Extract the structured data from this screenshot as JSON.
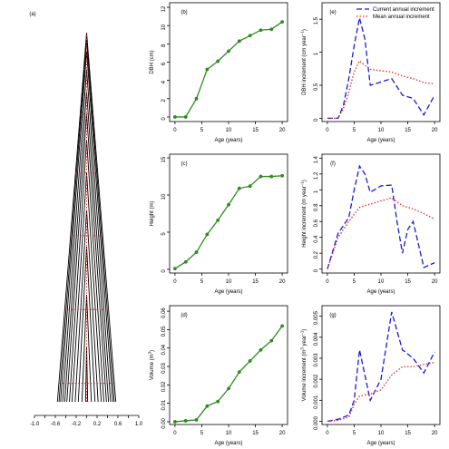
{
  "chart_data": [
    {
      "id": "a",
      "panel_label": "(a)",
      "type": "line",
      "title": "",
      "xlabel": "",
      "ylabel": "",
      "xlim": [
        -1.0,
        1.0
      ],
      "xticks": [
        -1.0,
        -0.6,
        -0.2,
        0.2,
        0.6,
        1.0
      ],
      "xtick_labels": [
        "-1.0",
        "-0.6",
        "-0.2",
        "0.2",
        "0.6",
        "1.0"
      ],
      "series": [
        {
          "values": [
            [
              -0.02,
              0.0
            ],
            [
              0.0,
              0.15
            ],
            [
              0.02,
              0.0
            ]
          ]
        },
        {
          "values": [
            [
              -0.09,
              0.0
            ],
            [
              0.0,
              0.29
            ],
            [
              0.09,
              0.0
            ]
          ]
        },
        {
          "values": [
            [
              -0.16,
              0.0
            ],
            [
              0.0,
              0.42
            ],
            [
              0.16,
              0.0
            ]
          ]
        },
        {
          "values": [
            [
              -0.22,
              0.0
            ],
            [
              0.0,
              0.52
            ],
            [
              0.22,
              0.0
            ]
          ]
        },
        {
          "values": [
            [
              -0.28,
              0.0
            ],
            [
              0.0,
              0.62
            ],
            [
              0.28,
              0.0
            ]
          ]
        },
        {
          "values": [
            [
              -0.33,
              0.0
            ],
            [
              0.0,
              0.71
            ],
            [
              0.33,
              0.0
            ]
          ]
        },
        {
          "values": [
            [
              -0.38,
              0.0
            ],
            [
              0.0,
              0.78
            ],
            [
              0.38,
              0.0
            ]
          ]
        },
        {
          "values": [
            [
              -0.42,
              0.0
            ],
            [
              0.0,
              0.84
            ],
            [
              0.42,
              0.0
            ]
          ]
        },
        {
          "values": [
            [
              -0.46,
              0.0
            ],
            [
              0.0,
              0.9
            ],
            [
              0.46,
              0.0
            ]
          ]
        },
        {
          "values": [
            [
              -0.5,
              0.0
            ],
            [
              0.0,
              0.95
            ],
            [
              0.5,
              0.0
            ]
          ]
        },
        {
          "values": [
            [
              -0.53,
              0.0
            ],
            [
              0.0,
              0.98
            ],
            [
              0.53,
              0.0
            ]
          ]
        },
        {
          "values": [
            [
              -0.56,
              0.0
            ],
            [
              0.0,
              1.0
            ],
            [
              0.56,
              0.0
            ]
          ]
        }
      ],
      "dotted_lines": {
        "color": "#e8281e",
        "vertical_x": 0.0,
        "horizontal_levels": [
          0.05,
          0.25,
          0.45,
          0.62,
          0.78,
          0.9
        ]
      },
      "colors": {
        "profile": "#000000",
        "axis": "#000000"
      }
    },
    {
      "id": "b",
      "panel_label": "(b)",
      "type": "line",
      "title": "",
      "xlabel": "Age (years)",
      "ylabel": "DBH (cm)",
      "ylabel_unit": "",
      "xlim": [
        -1,
        21
      ],
      "ylim": [
        -0.5,
        12.5
      ],
      "xticks": [
        0,
        5,
        10,
        15,
        20
      ],
      "yticks": [
        0,
        2,
        4,
        6,
        8,
        10,
        12
      ],
      "x": [
        0,
        2,
        4,
        6,
        8,
        10,
        12,
        14,
        16,
        18,
        20
      ],
      "series": [
        {
          "values": [
            0,
            0,
            2.0,
            5.2,
            6.1,
            7.2,
            8.3,
            8.9,
            9.5,
            9.6,
            10.4
          ],
          "color": "#2e8b1e",
          "style": "solid",
          "marker": "circle"
        }
      ]
    },
    {
      "id": "e",
      "panel_label": "(e)",
      "type": "line",
      "title": "",
      "xlabel": "Age (years)",
      "ylabel": "DBH increment (cm year",
      "ylabel_unit": "−1",
      "xlim": [
        -1,
        21
      ],
      "ylim": [
        -0.05,
        1.75
      ],
      "xticks": [
        0,
        5,
        10,
        15,
        20
      ],
      "yticks": [
        0.0,
        0.5,
        1.0,
        1.5
      ],
      "legend": {
        "placement": "top-right",
        "entries": [
          "Current annual increment",
          "Mean annual increment"
        ]
      },
      "series": [
        {
          "name": "Current annual increment",
          "color": "#1a1adc",
          "style": "dashed",
          "x": [
            0,
            2,
            3,
            4,
            5,
            6,
            7,
            8,
            10,
            12,
            14,
            16,
            18,
            20
          ],
          "values": [
            0.0,
            0.0,
            0.2,
            0.6,
            1.1,
            1.52,
            1.2,
            0.5,
            0.55,
            0.6,
            0.35,
            0.3,
            0.05,
            0.35
          ]
        },
        {
          "name": "Mean annual increment",
          "color": "#e8281e",
          "style": "dotted",
          "x": [
            0,
            2,
            3,
            4,
            5,
            6,
            7,
            8,
            10,
            12,
            14,
            16,
            18,
            20
          ],
          "values": [
            0.0,
            0.0,
            0.15,
            0.4,
            0.7,
            0.87,
            0.8,
            0.74,
            0.72,
            0.7,
            0.64,
            0.6,
            0.54,
            0.52
          ]
        }
      ]
    },
    {
      "id": "c",
      "panel_label": "(c)",
      "type": "line",
      "title": "",
      "xlabel": "Age (years)",
      "ylabel": "Height (m)",
      "ylabel_unit": "",
      "xlim": [
        -1,
        21
      ],
      "ylim": [
        -0.5,
        15.5
      ],
      "xticks": [
        0,
        5,
        10,
        15,
        20
      ],
      "yticks": [
        0,
        5,
        10,
        15
      ],
      "x": [
        0,
        2,
        4,
        6,
        8,
        10,
        12,
        14,
        16,
        18,
        20
      ],
      "series": [
        {
          "values": [
            0.1,
            1.0,
            2.3,
            4.7,
            6.6,
            8.7,
            10.9,
            11.2,
            12.5,
            12.5,
            12.6
          ],
          "color": "#2e8b1e",
          "style": "solid",
          "marker": "circle"
        }
      ]
    },
    {
      "id": "f",
      "panel_label": "(f)",
      "type": "line",
      "title": "",
      "xlabel": "Age (years)",
      "ylabel": "Height increment (m year",
      "ylabel_unit": "−1",
      "xlim": [
        -1,
        21
      ],
      "ylim": [
        -0.05,
        1.45
      ],
      "xticks": [
        0,
        5,
        10,
        15,
        20
      ],
      "yticks": [
        0.0,
        0.2,
        0.4,
        0.6,
        0.8,
        1.0,
        1.2,
        1.4
      ],
      "series": [
        {
          "name": "Current annual increment",
          "color": "#1a1adc",
          "style": "dashed",
          "x": [
            0,
            2,
            4,
            5,
            6,
            7,
            8,
            10,
            12,
            13,
            14,
            15,
            16,
            18,
            20
          ],
          "values": [
            0.0,
            0.45,
            0.65,
            1.0,
            1.3,
            1.2,
            0.97,
            1.05,
            1.06,
            0.6,
            0.2,
            0.5,
            0.6,
            0.02,
            0.08
          ]
        },
        {
          "name": "Mean annual increment",
          "color": "#e8281e",
          "style": "dotted",
          "x": [
            0,
            2,
            4,
            6,
            8,
            10,
            12,
            14,
            16,
            18,
            20
          ],
          "values": [
            0.0,
            0.4,
            0.6,
            0.78,
            0.82,
            0.86,
            0.9,
            0.8,
            0.76,
            0.7,
            0.63
          ]
        }
      ]
    },
    {
      "id": "d",
      "panel_label": "(d)",
      "type": "line",
      "title": "",
      "xlabel": "Age (years)",
      "ylabel": "Volume (m",
      "ylabel_unit": "3",
      "xlim": [
        -1,
        21
      ],
      "ylim": [
        -0.0015,
        0.063
      ],
      "xticks": [
        0,
        5,
        10,
        15,
        20
      ],
      "yticks": [
        0.0,
        0.01,
        0.02,
        0.03,
        0.04,
        0.05,
        0.06
      ],
      "ytick_labels": [
        "0.00",
        "0.01",
        "0.02",
        "0.03",
        "0.04",
        "0.05",
        "0.06"
      ],
      "x": [
        0,
        2,
        4,
        6,
        8,
        10,
        12,
        14,
        16,
        18,
        20
      ],
      "series": [
        {
          "values": [
            0.0,
            0.0005,
            0.001,
            0.0085,
            0.011,
            0.018,
            0.027,
            0.033,
            0.039,
            0.044,
            0.052
          ],
          "color": "#2e8b1e",
          "style": "solid",
          "marker": "circle"
        }
      ]
    },
    {
      "id": "g",
      "panel_label": "(g)",
      "type": "line",
      "title": "",
      "xlabel": "Age (years)",
      "ylabel": "Volume increment (m",
      "ylabel_unit": "3",
      "ylabel_suffix": " year",
      "ylabel_suffix_unit": "−1",
      "xlim": [
        -1,
        21
      ],
      "ylim": [
        -0.00015,
        0.0055
      ],
      "xticks": [
        0,
        5,
        10,
        15,
        20
      ],
      "yticks": [
        0.0,
        0.001,
        0.002,
        0.003,
        0.004,
        0.005
      ],
      "ytick_labels": [
        "0.000",
        "0.001",
        "0.002",
        "0.003",
        "0.004",
        "0.005"
      ],
      "series": [
        {
          "name": "Current annual increment",
          "color": "#1a1adc",
          "style": "dashed",
          "x": [
            0,
            2,
            4,
            5,
            6,
            7,
            8,
            10,
            12,
            14,
            16,
            18,
            20
          ],
          "values": [
            0.0,
            0.0001,
            0.0003,
            0.001,
            0.0034,
            0.0022,
            0.001,
            0.002,
            0.0052,
            0.0034,
            0.003,
            0.0023,
            0.0033
          ]
        },
        {
          "name": "Mean annual increment",
          "color": "#e8281e",
          "style": "dotted",
          "x": [
            0,
            2,
            4,
            5,
            6,
            8,
            10,
            12,
            14,
            16,
            18,
            20
          ],
          "values": [
            0.0,
            5e-05,
            0.0002,
            0.0008,
            0.0012,
            0.0013,
            0.0015,
            0.0022,
            0.0026,
            0.0026,
            0.0027,
            0.0028
          ]
        }
      ]
    }
  ]
}
